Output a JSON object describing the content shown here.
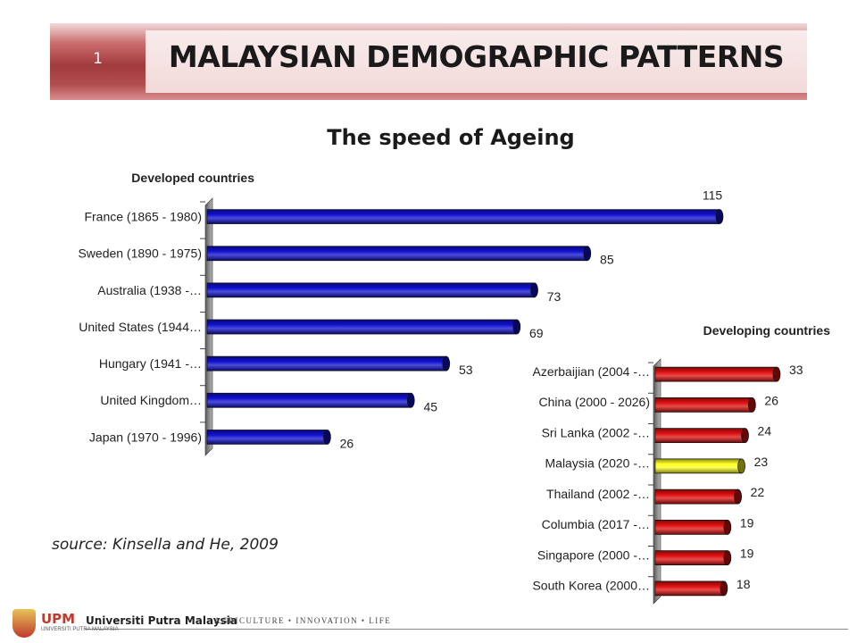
{
  "header": {
    "slide_number": "1",
    "title": "MALAYSIAN DEMOGRAPHIC PATTERNS"
  },
  "subtitle": "The speed of Ageing",
  "source_note": "source: Kinsella and He, 2009",
  "footer": {
    "logo": "UPM",
    "logo_sub": "UNIVERSITI PUTRA MALAYSIA",
    "university": "Universiti Putra Malaysia",
    "tagline": "AGRICULTURE • INNOVATION • LIFE"
  },
  "colors": {
    "developed_bar": "#1010d0",
    "developing_bar": "#e01010",
    "highlight_bar": "#ffff20",
    "header_band": "#a23a3c"
  },
  "chart_data": [
    {
      "type": "bar",
      "orientation": "horizontal",
      "title": "Developed countries",
      "categories": [
        "France (1865 - 1980)",
        "Sweden (1890 - 1975)",
        "Australia (1938 -…",
        "United States (1944…",
        "Hungary (1941 -…",
        "United Kingdom…",
        "Japan (1970 - 1996)"
      ],
      "values": [
        115,
        85,
        73,
        69,
        53,
        45,
        26
      ],
      "xlim": [
        0,
        115
      ],
      "grid": false,
      "data_labels": true,
      "color": "#1010d0"
    },
    {
      "type": "bar",
      "orientation": "horizontal",
      "title": "Developing countries",
      "categories": [
        "Azerbaijian (2004 -…",
        "China (2000 - 2026)",
        "Sri Lanka (2002 -…",
        "Malaysia (2020 -…",
        "Thailand (2002 -…",
        "Columbia (2017 -…",
        "Singapore (2000 -…",
        "South Korea (2000…"
      ],
      "values": [
        33,
        26,
        24,
        23,
        22,
        19,
        19,
        18
      ],
      "xlim": [
        0,
        33
      ],
      "grid": false,
      "data_labels": true,
      "color": "#e01010",
      "highlight": {
        "category": "Malaysia (2020 -…",
        "color": "#ffff20"
      }
    }
  ]
}
